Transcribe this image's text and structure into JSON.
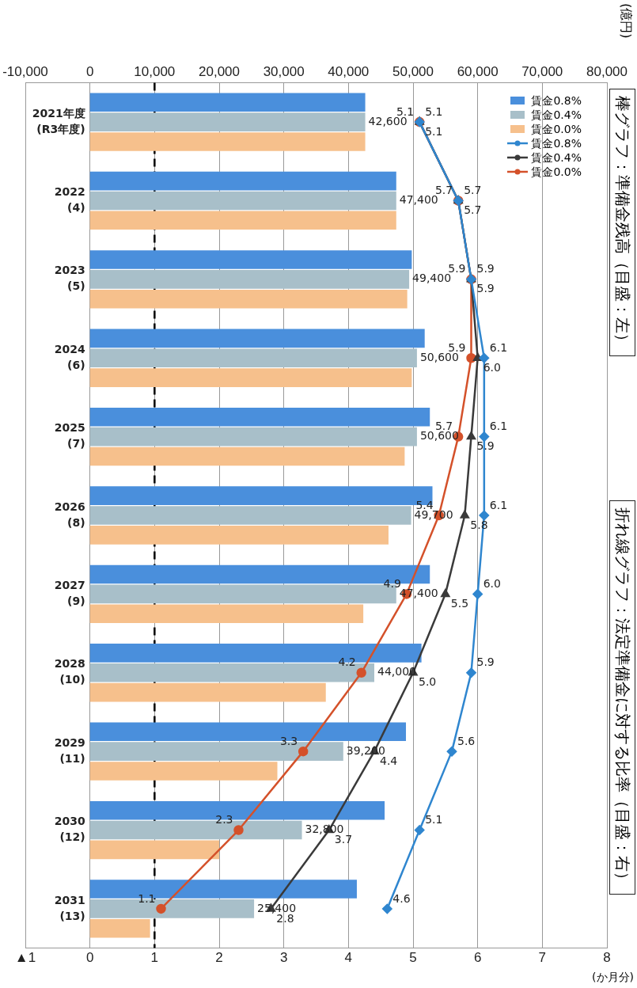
{
  "chart_data": {
    "type": "bar",
    "orientation": "horizontal",
    "title": "棒グラフ：準備金残高（目盛：左）",
    "subtitle": "折れ線グラフ：法定準備金に対する比率（目盛：右）",
    "x2label": "(億円)",
    "xlabel": "(か月分)",
    "categories": [
      "2021年度\n(R3年度)",
      "2022\n(4)",
      "2023\n(5)",
      "2024\n(6)",
      "2025\n(7)",
      "2026\n(8)",
      "2027\n(9)",
      "2028\n(10)",
      "2029\n(11)",
      "2030\n(12)",
      "2031\n(13)"
    ],
    "series": [
      {
        "name": "賃金0.8%",
        "axis": "x2",
        "color": "#4a8fdc",
        "values": [
          42600,
          47400,
          49800,
          51800,
          52600,
          53000,
          52600,
          51300,
          48900,
          45600,
          41300
        ]
      },
      {
        "name": "賃金0.4%",
        "axis": "x2",
        "color": "#a8bfc9",
        "values": [
          42600,
          47400,
          49400,
          50600,
          50600,
          49700,
          47400,
          44000,
          39200,
          32800,
          25400
        ],
        "value_labels": [
          "42,600",
          "47,400",
          "49,400",
          "50,600",
          "50,600",
          "49,700",
          "47,400",
          "44,000",
          "39,200",
          "32,800",
          "25,400"
        ]
      },
      {
        "name": "賃金0.0%",
        "axis": "x2",
        "color": "#f6c08c",
        "values": [
          42600,
          47400,
          49100,
          49800,
          48700,
          46200,
          42300,
          36500,
          29000,
          20000,
          9300
        ]
      },
      {
        "name": "賃金0.8%",
        "type": "line",
        "color": "#2f86cf",
        "marker": "diamond",
        "values": [
          5.1,
          5.7,
          5.9,
          6.1,
          6.1,
          6.1,
          6.0,
          5.9,
          5.6,
          5.1,
          4.6
        ],
        "value_labels": [
          "5.1",
          "5.7",
          "5.9",
          "6.1",
          "6.1",
          "6.1",
          "6.0",
          "5.9",
          "5.6",
          "5.1",
          "4.6"
        ]
      },
      {
        "name": "賃金0.4%",
        "type": "line",
        "color": "#3a3a3a",
        "marker": "triangle",
        "values": [
          5.1,
          5.7,
          5.9,
          6.0,
          5.9,
          5.8,
          5.5,
          5.0,
          4.4,
          3.7,
          2.8
        ],
        "value_labels": [
          "5.1",
          "5.7",
          "5.9",
          "6.0",
          "5.9",
          "5.8",
          "5.5",
          "5.0",
          "4.4",
          "3.7",
          "2.8"
        ]
      },
      {
        "name": "賃金0.0%",
        "type": "line",
        "color": "#d4512a",
        "marker": "circle",
        "values": [
          5.1,
          5.7,
          5.9,
          5.9,
          5.7,
          5.4,
          4.9,
          4.2,
          3.3,
          2.3,
          1.1
        ],
        "value_labels": [
          "5.1",
          "5.7",
          "5.9",
          "5.9",
          "5.7",
          "5.4",
          "4.9",
          "4.2",
          "3.3",
          "2.3",
          "1.1"
        ]
      }
    ],
    "x2lim": [
      -10000,
      80000
    ],
    "x2ticks": [
      {
        "value": -10000,
        "label": "-10,000"
      },
      {
        "value": 0,
        "label": "0"
      },
      {
        "value": 10000,
        "label": "10,000"
      },
      {
        "value": 20000,
        "label": "20,000"
      },
      {
        "value": 30000,
        "label": "30,000"
      },
      {
        "value": 40000,
        "label": "40,000"
      },
      {
        "value": 50000,
        "label": "50,000"
      },
      {
        "value": 60000,
        "label": "60,000"
      },
      {
        "value": 70000,
        "label": "70,000"
      },
      {
        "value": 80000,
        "label": "80,000"
      }
    ],
    "xlim": [
      -1,
      8
    ],
    "xticks": [
      {
        "value": -1,
        "label": "▲1"
      },
      0,
      1,
      2,
      3,
      4,
      5,
      6,
      7,
      8
    ],
    "ref_lines": [
      {
        "axis": "x",
        "value": 1,
        "line_style": "dashed",
        "color": "#000000"
      }
    ],
    "grid": "x",
    "legend": "top right"
  }
}
